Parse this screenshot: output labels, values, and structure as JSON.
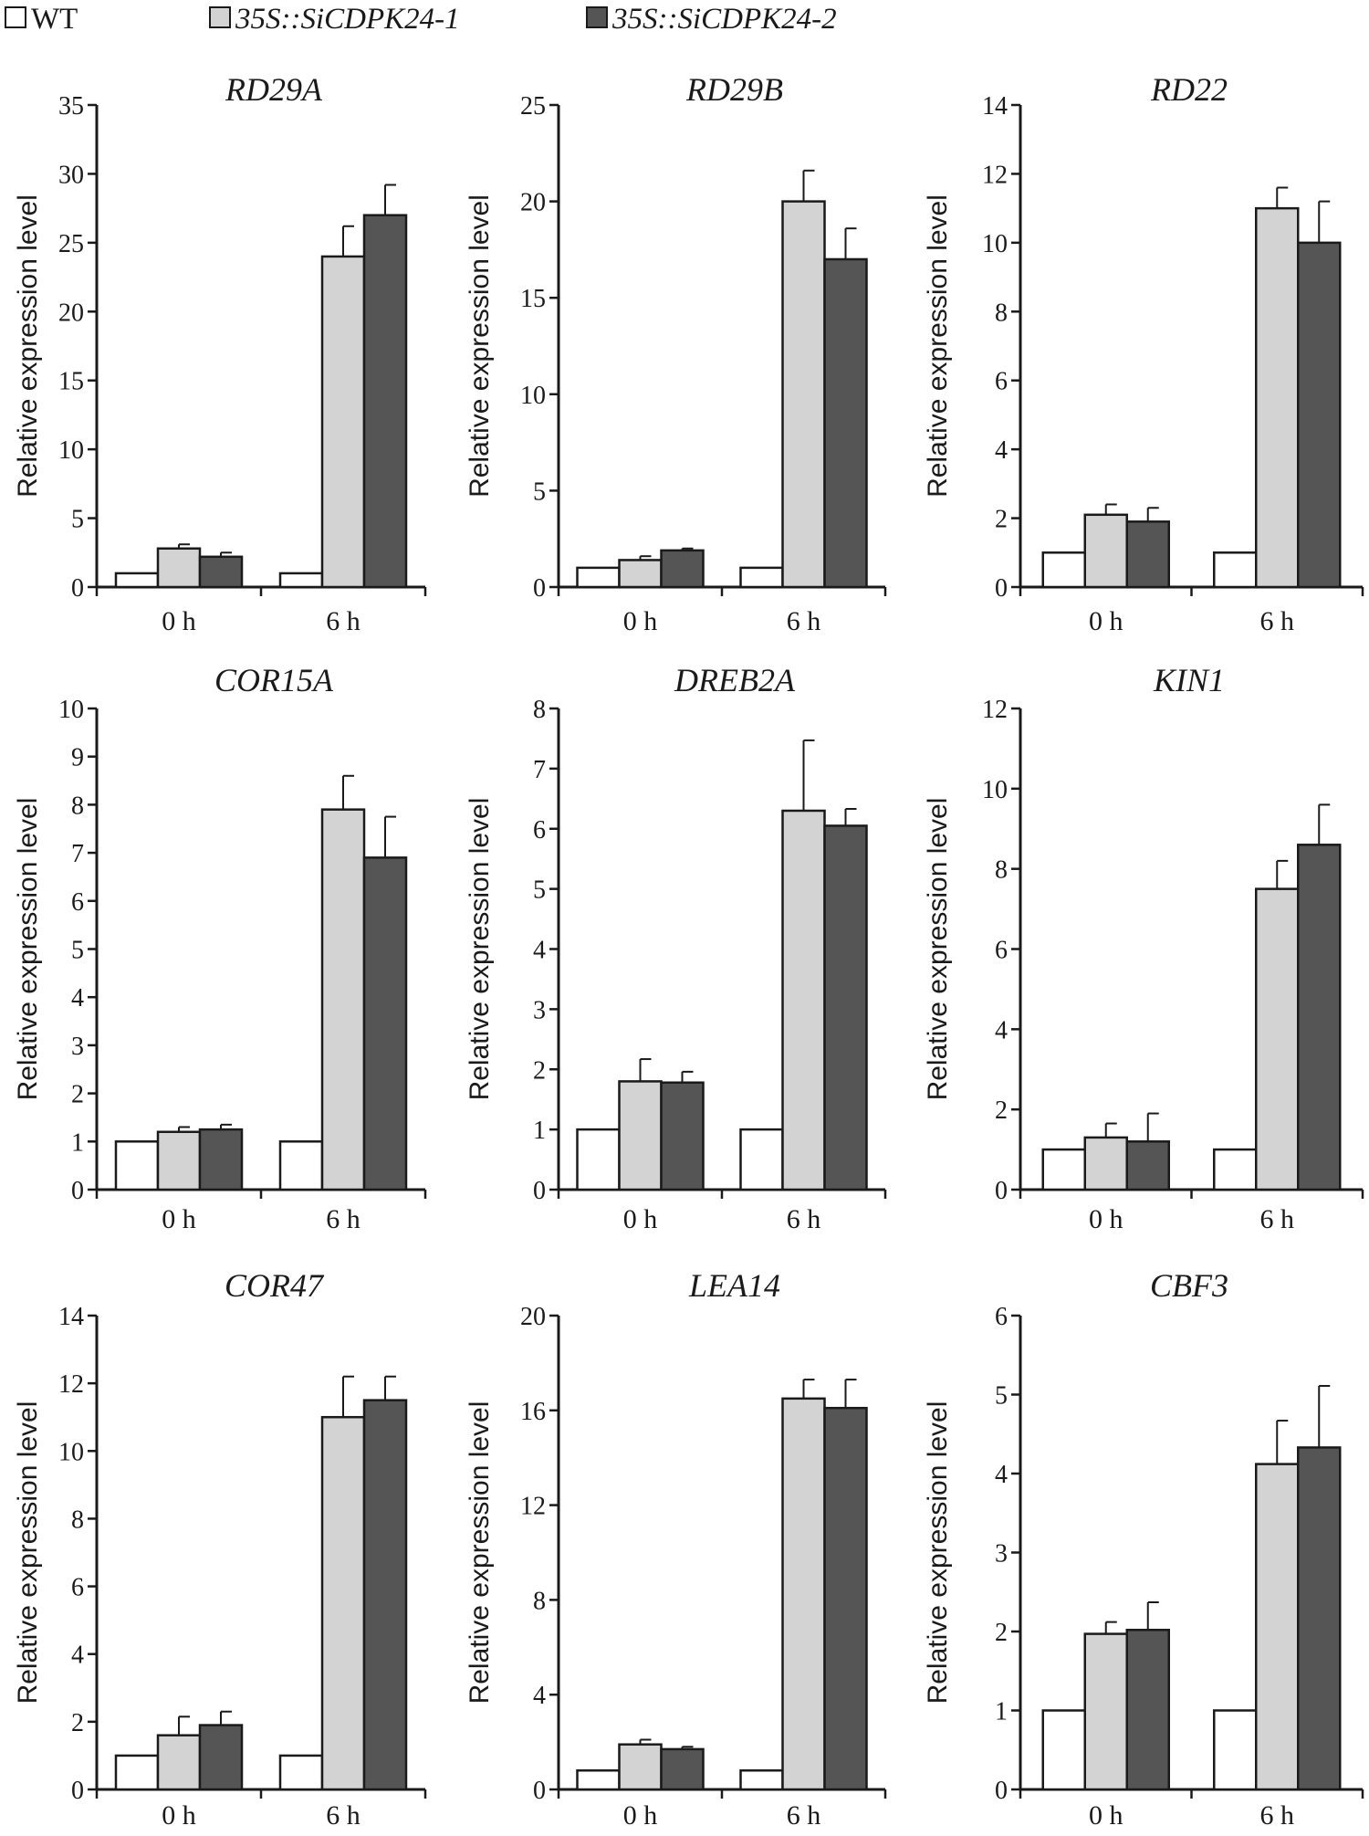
{
  "legend": {
    "items": [
      {
        "label": "WT",
        "color": "#ffffff",
        "italic": false
      },
      {
        "label": "35S::SiCDPK24-1",
        "color": "#d3d3d3",
        "italic": true
      },
      {
        "label": "35S::SiCDPK24-2",
        "color": "#555555",
        "italic": true
      }
    ]
  },
  "chart_data": [
    {
      "type": "bar",
      "title": "RD29A",
      "ylabel": "Relative expression level",
      "ylim": [
        0,
        35
      ],
      "yticks": [
        0,
        5,
        10,
        15,
        20,
        25,
        30,
        35
      ],
      "categories": [
        "0 h",
        "6 h"
      ],
      "series": [
        {
          "name": "WT",
          "values": [
            1,
            1
          ],
          "errors": [
            0,
            0
          ]
        },
        {
          "name": "35S::SiCDPK24-1",
          "values": [
            2.8,
            24
          ],
          "errors": [
            0.3,
            2.2
          ]
        },
        {
          "name": "35S::SiCDPK24-2",
          "values": [
            2.2,
            27
          ],
          "errors": [
            0.3,
            2.2
          ]
        }
      ]
    },
    {
      "type": "bar",
      "title": "RD29B",
      "ylabel": "Relative expression level",
      "ylim": [
        0,
        25
      ],
      "yticks": [
        0,
        5,
        10,
        15,
        20,
        25
      ],
      "categories": [
        "0 h",
        "6 h"
      ],
      "series": [
        {
          "name": "WT",
          "values": [
            1,
            1
          ],
          "errors": [
            0,
            0
          ]
        },
        {
          "name": "35S::SiCDPK24-1",
          "values": [
            1.4,
            20
          ],
          "errors": [
            0.2,
            1.6
          ]
        },
        {
          "name": "35S::SiCDPK24-2",
          "values": [
            1.9,
            17
          ],
          "errors": [
            0.1,
            1.6
          ]
        }
      ]
    },
    {
      "type": "bar",
      "title": "RD22",
      "ylabel": "Relative expression level",
      "ylim": [
        0,
        14
      ],
      "yticks": [
        0,
        2,
        4,
        6,
        8,
        10,
        12,
        14
      ],
      "categories": [
        "0 h",
        "6 h"
      ],
      "series": [
        {
          "name": "WT",
          "values": [
            1,
            1
          ],
          "errors": [
            0,
            0
          ]
        },
        {
          "name": "35S::SiCDPK24-1",
          "values": [
            2.1,
            11
          ],
          "errors": [
            0.3,
            0.6
          ]
        },
        {
          "name": "35S::SiCDPK24-2",
          "values": [
            1.9,
            10
          ],
          "errors": [
            0.4,
            1.2
          ]
        }
      ]
    },
    {
      "type": "bar",
      "title": "COR15A",
      "ylabel": "Relative expression level",
      "ylim": [
        0,
        10
      ],
      "yticks": [
        0,
        1,
        2,
        3,
        4,
        5,
        6,
        7,
        8,
        9,
        10
      ],
      "categories": [
        "0 h",
        "6 h"
      ],
      "series": [
        {
          "name": "WT",
          "values": [
            1,
            1
          ],
          "errors": [
            0,
            0
          ]
        },
        {
          "name": "35S::SiCDPK24-1",
          "values": [
            1.2,
            7.9
          ],
          "errors": [
            0.1,
            0.7
          ]
        },
        {
          "name": "35S::SiCDPK24-2",
          "values": [
            1.25,
            6.9
          ],
          "errors": [
            0.1,
            0.85
          ]
        }
      ]
    },
    {
      "type": "bar",
      "title": "DREB2A",
      "ylabel": "Relative expression level",
      "ylim": [
        0,
        8
      ],
      "yticks": [
        0,
        1,
        2,
        3,
        4,
        5,
        6,
        7,
        8
      ],
      "categories": [
        "0 h",
        "6 h"
      ],
      "series": [
        {
          "name": "WT",
          "values": [
            1,
            1
          ],
          "errors": [
            0,
            0
          ]
        },
        {
          "name": "35S::SiCDPK24-1",
          "values": [
            1.8,
            6.3
          ],
          "errors": [
            0.37,
            1.17
          ]
        },
        {
          "name": "35S::SiCDPK24-2",
          "values": [
            1.78,
            6.05
          ],
          "errors": [
            0.18,
            0.28
          ]
        }
      ]
    },
    {
      "type": "bar",
      "title": "KIN1",
      "ylabel": "Relative expression level",
      "ylim": [
        0,
        12
      ],
      "yticks": [
        0,
        2,
        4,
        6,
        8,
        10,
        12
      ],
      "categories": [
        "0 h",
        "6 h"
      ],
      "series": [
        {
          "name": "WT",
          "values": [
            1,
            1
          ],
          "errors": [
            0,
            0
          ]
        },
        {
          "name": "35S::SiCDPK24-1",
          "values": [
            1.3,
            7.5
          ],
          "errors": [
            0.35,
            0.7
          ]
        },
        {
          "name": "35S::SiCDPK24-2",
          "values": [
            1.2,
            8.6
          ],
          "errors": [
            0.7,
            1.0
          ]
        }
      ]
    },
    {
      "type": "bar",
      "title": "COR47",
      "ylabel": "Relative expression level",
      "ylim": [
        0,
        14
      ],
      "yticks": [
        0,
        2,
        4,
        6,
        8,
        10,
        12,
        14
      ],
      "categories": [
        "0 h",
        "6 h"
      ],
      "series": [
        {
          "name": "WT",
          "values": [
            1,
            1
          ],
          "errors": [
            0,
            0
          ]
        },
        {
          "name": "35S::SiCDPK24-1",
          "values": [
            1.6,
            11
          ],
          "errors": [
            0.55,
            1.2
          ]
        },
        {
          "name": "35S::SiCDPK24-2",
          "values": [
            1.9,
            11.5
          ],
          "errors": [
            0.4,
            0.7
          ]
        }
      ]
    },
    {
      "type": "bar",
      "title": "LEA14",
      "ylabel": "Relative expression level",
      "ylim": [
        0,
        20
      ],
      "yticks": [
        0,
        4,
        8,
        12,
        16,
        20
      ],
      "categories": [
        "0 h",
        "6 h"
      ],
      "series": [
        {
          "name": "WT",
          "values": [
            0.8,
            0.8
          ],
          "errors": [
            0,
            0
          ]
        },
        {
          "name": "35S::SiCDPK24-1",
          "values": [
            1.9,
            16.5
          ],
          "errors": [
            0.2,
            0.8
          ]
        },
        {
          "name": "35S::SiCDPK24-2",
          "values": [
            1.7,
            16.1
          ],
          "errors": [
            0.1,
            1.2
          ]
        }
      ]
    },
    {
      "type": "bar",
      "title": "CBF3",
      "ylabel": "Relative expression level",
      "ylim": [
        0,
        6
      ],
      "yticks": [
        0,
        1,
        2,
        3,
        4,
        5,
        6
      ],
      "categories": [
        "0 h",
        "6 h"
      ],
      "series": [
        {
          "name": "WT",
          "values": [
            1,
            1
          ],
          "errors": [
            0,
            0
          ]
        },
        {
          "name": "35S::SiCDPK24-1",
          "values": [
            1.97,
            4.12
          ],
          "errors": [
            0.15,
            0.55
          ]
        },
        {
          "name": "35S::SiCDPK24-2",
          "values": [
            2.02,
            4.33
          ],
          "errors": [
            0.35,
            0.78
          ]
        }
      ]
    }
  ]
}
